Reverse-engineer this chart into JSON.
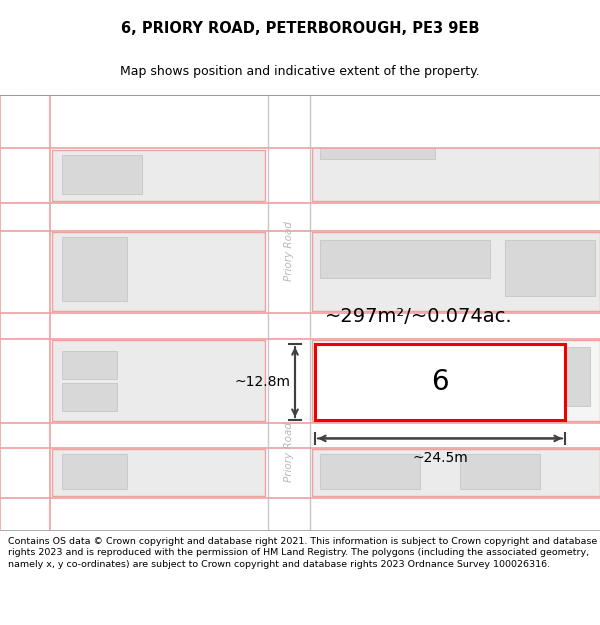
{
  "title_line1": "6, PRIORY ROAD, PETERBOROUGH, PE3 9EB",
  "title_line2": "Map shows position and indicative extent of the property.",
  "footer_text": "Contains OS data © Crown copyright and database right 2021. This information is subject to Crown copyright and database rights 2023 and is reproduced with the permission of HM Land Registry. The polygons (including the associated geometry, namely x, y co-ordinates) are subject to Crown copyright and database rights 2023 Ordnance Survey 100026316.",
  "map_bg": "#f0f0f0",
  "road_fill": "#ffffff",
  "pink": "#f0a0a0",
  "gray_edge": "#c8c8c8",
  "bld_fill": "#d8d8d8",
  "bld_edge": "#c0c0c0",
  "plot_color": "#ee0000",
  "dim_color": "#404040",
  "area_text": "~297m²/~0.074ac.",
  "width_label": "~24.5m",
  "height_label": "~12.8m",
  "prop_num": "6",
  "road_label": "Priory Road",
  "title_fs": 10.5,
  "subtitle_fs": 9,
  "footer_fs": 6.8,
  "road_label_fs": 7.5,
  "area_fs": 14,
  "dim_fs": 10,
  "prop_num_fs": 20
}
